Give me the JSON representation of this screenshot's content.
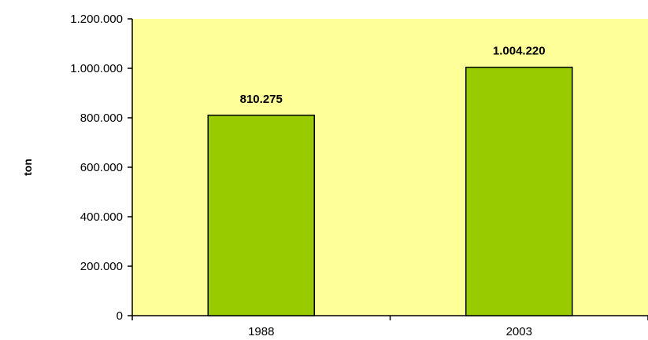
{
  "chart_data": {
    "type": "bar",
    "title": "",
    "xlabel": "",
    "ylabel": "ton",
    "categories": [
      "1988",
      "2003"
    ],
    "values": [
      810275,
      1004220
    ],
    "data_labels": [
      "810.275",
      "1.004.220"
    ],
    "ylim": [
      0,
      1200000
    ],
    "y_ticks": [
      0,
      200000,
      400000,
      600000,
      800000,
      1000000,
      1200000
    ],
    "y_tick_labels": [
      "0",
      "200.000",
      "400.000",
      "600.000",
      "800.000",
      "1.000.000",
      "1.200.000"
    ],
    "grid": false,
    "legend": "none",
    "colors": {
      "plot_background": "#ffff99",
      "bar_fill": "#99cc00",
      "bar_stroke": "#000000",
      "axis": "#000000"
    }
  }
}
